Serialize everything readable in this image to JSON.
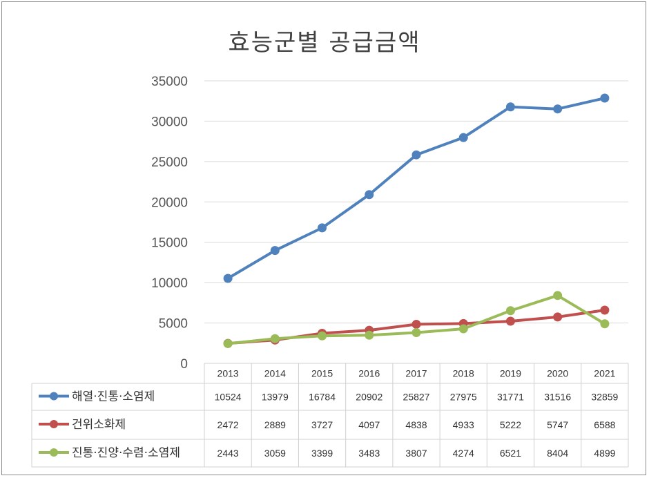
{
  "chart_data": {
    "type": "line",
    "title": "효능군별 공급금액",
    "categories": [
      "2013",
      "2014",
      "2015",
      "2016",
      "2017",
      "2018",
      "2019",
      "2020",
      "2021"
    ],
    "ylim": [
      0,
      35000
    ],
    "yticks": [
      "0",
      "5000",
      "10000",
      "15000",
      "20000",
      "25000",
      "30000",
      "35000"
    ],
    "grid": true,
    "legend": "data-table",
    "series": [
      {
        "name": "해열·진통·소염제",
        "color": "#4f81bd",
        "values": [
          10524,
          13979,
          16784,
          20902,
          25827,
          27975,
          31771,
          31516,
          32859
        ]
      },
      {
        "name": "건위소화제",
        "color": "#c0504d",
        "values": [
          2472,
          2889,
          3727,
          4097,
          4838,
          4933,
          5222,
          5747,
          6588
        ]
      },
      {
        "name": "진통·진양·수렴·소염제",
        "color": "#9bbb59",
        "values": [
          2443,
          3059,
          3399,
          3483,
          3807,
          4274,
          6521,
          8404,
          4899
        ]
      }
    ]
  }
}
